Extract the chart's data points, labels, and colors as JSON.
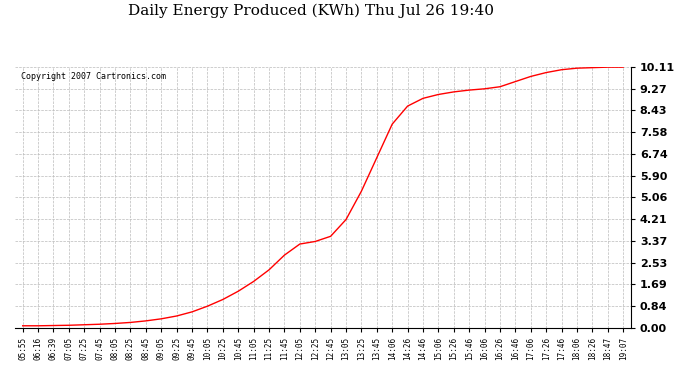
{
  "title": "Daily Energy Produced (KWh) Thu Jul 26 19:40",
  "copyright_text": "Copyright 2007 Cartronics.com",
  "line_color": "#ff0000",
  "bg_color": "#ffffff",
  "grid_color": "#bbbbbb",
  "yticks": [
    0.0,
    0.84,
    1.69,
    2.53,
    3.37,
    4.21,
    5.06,
    5.9,
    6.74,
    7.58,
    8.43,
    9.27,
    10.11
  ],
  "ylim": [
    0.0,
    10.11
  ],
  "xtick_labels": [
    "05:55",
    "06:16",
    "06:39",
    "07:05",
    "07:25",
    "07:45",
    "08:05",
    "08:25",
    "08:45",
    "09:05",
    "09:25",
    "09:45",
    "10:05",
    "10:25",
    "10:45",
    "11:05",
    "11:25",
    "11:45",
    "12:05",
    "12:25",
    "12:45",
    "13:05",
    "13:25",
    "13:45",
    "14:06",
    "14:26",
    "14:46",
    "15:06",
    "15:26",
    "15:46",
    "16:06",
    "16:26",
    "16:46",
    "17:06",
    "17:26",
    "17:46",
    "18:06",
    "18:26",
    "18:47",
    "19:07"
  ],
  "curve_x_indices": [
    0,
    1,
    2,
    3,
    4,
    5,
    6,
    7,
    8,
    9,
    10,
    11,
    12,
    13,
    14,
    15,
    16,
    17,
    18,
    19,
    20,
    21,
    22,
    23,
    24,
    25,
    26,
    27,
    28,
    29,
    30,
    31,
    32,
    33,
    34,
    35,
    36,
    37,
    38,
    39
  ],
  "curve_y": [
    0.08,
    0.08,
    0.09,
    0.1,
    0.12,
    0.14,
    0.17,
    0.21,
    0.27,
    0.35,
    0.46,
    0.62,
    0.84,
    1.1,
    1.42,
    1.8,
    2.25,
    2.82,
    3.25,
    3.35,
    3.55,
    4.2,
    5.3,
    6.6,
    7.9,
    8.6,
    8.9,
    9.05,
    9.15,
    9.22,
    9.27,
    9.35,
    9.55,
    9.75,
    9.9,
    10.01,
    10.07,
    10.09,
    10.11,
    10.11
  ]
}
